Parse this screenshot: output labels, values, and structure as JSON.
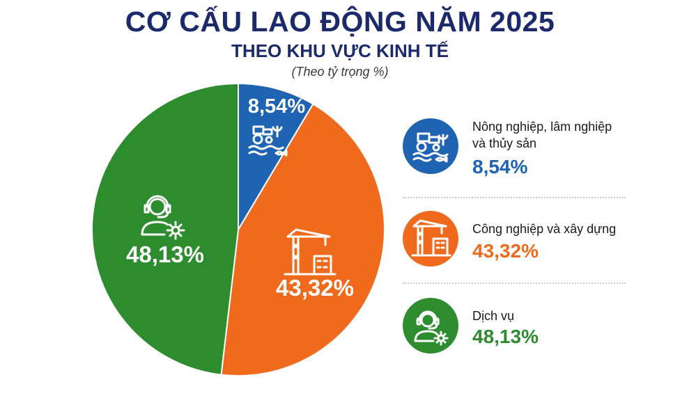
{
  "chart_data": {
    "type": "pie",
    "title": "CƠ CẤU LAO ĐỘNG NĂM 2025",
    "subtitle": "THEO KHU VỰC KINH TẾ",
    "note": "(Theo tỷ trọng %)",
    "slices": [
      {
        "label": "Nông nghiệp, lâm nghiệp và thủy sản",
        "value": 8.54,
        "display": "8,54%",
        "color": "#1f63b3",
        "icon": "tractor-fish-icon"
      },
      {
        "label": "Công nghiệp và xây dựng",
        "value": 43.32,
        "display": "43,32%",
        "color": "#f06a1d",
        "icon": "crane-building-icon"
      },
      {
        "label": "Dịch vụ",
        "value": 48.13,
        "display": "48,13%",
        "color": "#2d8c2e",
        "icon": "headset-agent-gear-icon"
      }
    ],
    "legend_position": "right",
    "start_angle": "12 o'clock",
    "direction": "clockwise"
  },
  "legend": {
    "items": [
      {
        "label_line1": "Nông nghiệp, lâm nghiệp",
        "label_line2": "và thủy sản",
        "value": "8,54%"
      },
      {
        "label_line1": "Công nghiệp và xây dựng",
        "label_line2": "",
        "value": "43,32%"
      },
      {
        "label_line1": "Dịch vụ",
        "label_line2": "",
        "value": "48,13%"
      }
    ]
  }
}
